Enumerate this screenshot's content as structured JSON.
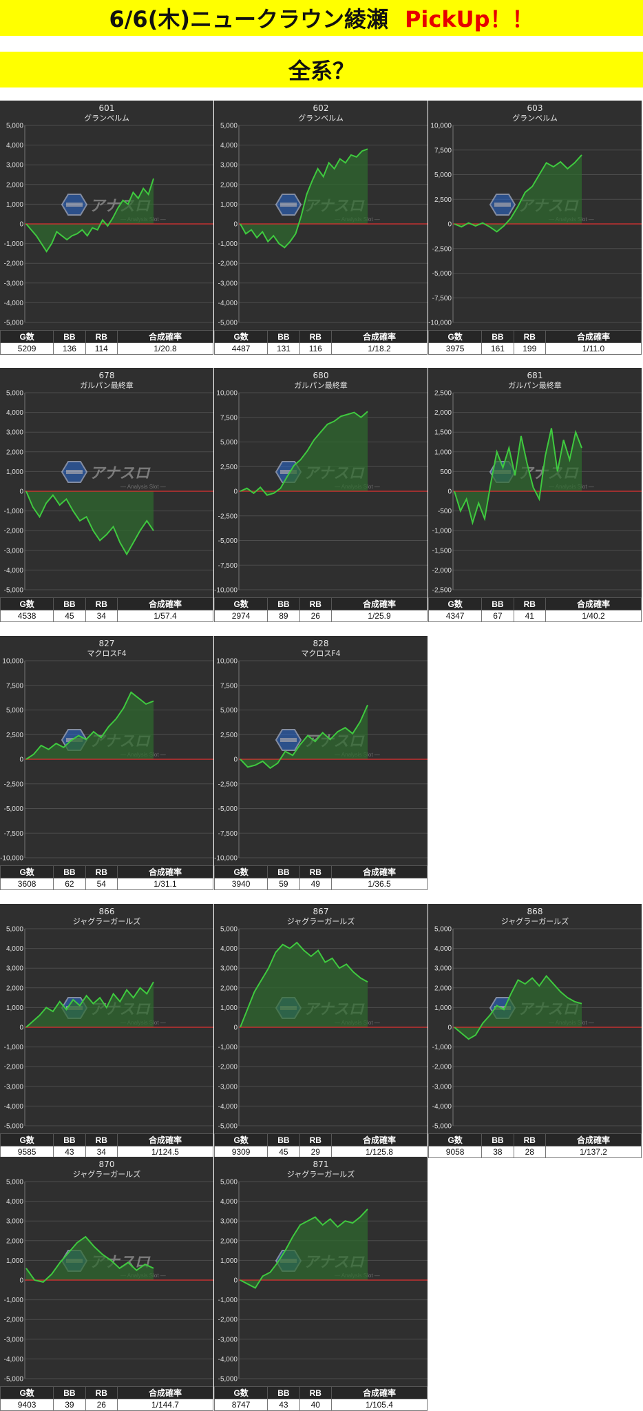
{
  "header": {
    "title": "6/6(木)ニュークラウン綾瀬",
    "pickup": "PickUp！！",
    "subtitle": "全系？"
  },
  "watermark": {
    "main": "アナスロ",
    "sub": "Analysis Slot"
  },
  "table_headers": {
    "games": "G数",
    "bb": "BB",
    "rb": "RB",
    "rate": "合成確率"
  },
  "colors": {
    "banner": "#ffff00",
    "plot_bg": "#2f2f2f",
    "line": "#3fc93f",
    "area": "#2e6b2e",
    "zero_line": "#e03030",
    "pickup": "#e60000"
  },
  "chart_data": [
    {
      "type": "area",
      "title": "601",
      "subtitle": "グランベルム",
      "ylim": [
        -5000,
        5000
      ],
      "yticks": [
        "5,000",
        "4,000",
        "3,000",
        "2,000",
        "1,000",
        "0",
        "-1,000",
        "-2,000",
        "-3,000",
        "-4,000",
        "-5,000"
      ],
      "values": [
        0,
        -300,
        -600,
        -1000,
        -1400,
        -1000,
        -400,
        -600,
        -800,
        -600,
        -500,
        -300,
        -600,
        -200,
        -300,
        200,
        -100,
        300,
        800,
        1200,
        1000,
        1600,
        1300,
        1800,
        1500,
        2300
      ],
      "stats": {
        "games": "5209",
        "bb": "136",
        "rb": "114",
        "rate": "1/20.8"
      }
    },
    {
      "type": "area",
      "title": "602",
      "subtitle": "グランベルム",
      "ylim": [
        -5000,
        5000
      ],
      "yticks": [
        "5,000",
        "4,000",
        "3,000",
        "2,000",
        "1,000",
        "0",
        "-1,000",
        "-2,000",
        "-3,000",
        "-4,000",
        "-5,000"
      ],
      "values": [
        0,
        -500,
        -300,
        -700,
        -400,
        -900,
        -600,
        -1000,
        -1200,
        -900,
        -500,
        400,
        1500,
        2200,
        2800,
        2400,
        3100,
        2800,
        3300,
        3100,
        3500,
        3400,
        3700,
        3800
      ],
      "stats": {
        "games": "4487",
        "bb": "131",
        "rb": "116",
        "rate": "1/18.2"
      }
    },
    {
      "type": "area",
      "title": "603",
      "subtitle": "グランベルム",
      "ylim": [
        -10000,
        10000
      ],
      "yticks": [
        "10,000",
        "7,500",
        "5,000",
        "2,500",
        "0",
        "-2,500",
        "-5,000",
        "-7,500",
        "-10,000"
      ],
      "values": [
        0,
        -300,
        100,
        -200,
        100,
        -300,
        -800,
        -200,
        600,
        1800,
        3200,
        3800,
        5000,
        6200,
        5800,
        6300,
        5600,
        6200,
        7000
      ],
      "stats": {
        "games": "3975",
        "bb": "161",
        "rb": "199",
        "rate": "1/11.0"
      }
    },
    {
      "type": "area",
      "title": "678",
      "subtitle": "ガルパン最終章",
      "ylim": [
        -5000,
        5000
      ],
      "yticks": [
        "5,000",
        "4,000",
        "3,000",
        "2,000",
        "1,000",
        "0",
        "-1,000",
        "-2,000",
        "-3,000",
        "-4,000",
        "-5,000"
      ],
      "values": [
        0,
        -800,
        -1300,
        -600,
        -200,
        -700,
        -400,
        -1000,
        -1500,
        -1300,
        -2000,
        -2500,
        -2200,
        -1800,
        -2600,
        -3200,
        -2600,
        -2000,
        -1500,
        -2000
      ],
      "stats": {
        "games": "4538",
        "bb": "45",
        "rb": "34",
        "rate": "1/57.4"
      }
    },
    {
      "type": "area",
      "title": "680",
      "subtitle": "ガルパン最終章",
      "ylim": [
        -10000,
        10000
      ],
      "yticks": [
        "10,000",
        "7,500",
        "5,000",
        "2,500",
        "0",
        "-2,500",
        "-5,000",
        "-7,500",
        "-10,000"
      ],
      "values": [
        0,
        300,
        -200,
        400,
        -400,
        -200,
        300,
        1500,
        2600,
        3200,
        4100,
        5200,
        6000,
        6800,
        7100,
        7600,
        7800,
        8000,
        7500,
        8100
      ],
      "stats": {
        "games": "2974",
        "bb": "89",
        "rb": "26",
        "rate": "1/25.9"
      }
    },
    {
      "type": "area",
      "title": "681",
      "subtitle": "ガルパン最終章",
      "ylim": [
        -2500,
        2500
      ],
      "yticks": [
        "2,500",
        "2,000",
        "1,500",
        "1,000",
        "500",
        "0",
        "-500",
        "-1,000",
        "-1,500",
        "-2,000",
        "-2,500"
      ],
      "values": [
        0,
        -500,
        -200,
        -800,
        -300,
        -700,
        200,
        1000,
        600,
        1100,
        400,
        1400,
        700,
        100,
        -200,
        900,
        1600,
        500,
        1300,
        800,
        1500,
        1100
      ],
      "stats": {
        "games": "4347",
        "bb": "67",
        "rb": "41",
        "rate": "1/40.2"
      }
    },
    {
      "type": "area",
      "title": "827",
      "subtitle": "マクロスF4",
      "ylim": [
        -10000,
        10000
      ],
      "yticks": [
        "10,000",
        "7,500",
        "5,000",
        "2,500",
        "0",
        "-2,500",
        "-5,000",
        "-7,500",
        "-10,000"
      ],
      "values": [
        0,
        500,
        1400,
        1000,
        1600,
        1200,
        1900,
        2400,
        2000,
        2800,
        2200,
        3300,
        4100,
        5200,
        6800,
        6200,
        5600,
        5900
      ],
      "stats": {
        "games": "3608",
        "bb": "62",
        "rb": "54",
        "rate": "1/31.1"
      }
    },
    {
      "type": "area",
      "title": "828",
      "subtitle": "マクロスF4",
      "ylim": [
        -10000,
        10000
      ],
      "yticks": [
        "10,000",
        "7,500",
        "5,000",
        "2,500",
        "0",
        "-2,500",
        "-5,000",
        "-7,500",
        "-10,000"
      ],
      "values": [
        0,
        -800,
        -600,
        -200,
        -900,
        -400,
        800,
        400,
        1500,
        2400,
        1800,
        2700,
        2000,
        2800,
        3200,
        2600,
        3800,
        5500
      ],
      "stats": {
        "games": "3940",
        "bb": "59",
        "rb": "49",
        "rate": "1/36.5"
      }
    },
    {
      "type": "area",
      "title": "866",
      "subtitle": "ジャグラーガールズ",
      "ylim": [
        -5000,
        5000
      ],
      "yticks": [
        "5,000",
        "4,000",
        "3,000",
        "2,000",
        "1,000",
        "0",
        "-1,000",
        "-2,000",
        "-3,000",
        "-4,000",
        "-5,000"
      ],
      "values": [
        0,
        300,
        600,
        1000,
        800,
        1300,
        900,
        1400,
        1100,
        1600,
        1200,
        1500,
        1000,
        1700,
        1300,
        1900,
        1500,
        2000,
        1700,
        2300
      ],
      "stats": {
        "games": "9585",
        "bb": "43",
        "rb": "34",
        "rate": "1/124.5"
      }
    },
    {
      "type": "area",
      "title": "867",
      "subtitle": "ジャグラーガールズ",
      "ylim": [
        -5000,
        5000
      ],
      "yticks": [
        "5,000",
        "4,000",
        "3,000",
        "2,000",
        "1,000",
        "0",
        "-1,000",
        "-2,000",
        "-3,000",
        "-4,000",
        "-5,000"
      ],
      "values": [
        0,
        900,
        1800,
        2400,
        3000,
        3800,
        4200,
        4000,
        4300,
        3900,
        3600,
        3900,
        3300,
        3500,
        3000,
        3200,
        2800,
        2500,
        2300
      ],
      "stats": {
        "games": "9309",
        "bb": "45",
        "rb": "29",
        "rate": "1/125.8"
      }
    },
    {
      "type": "area",
      "title": "868",
      "subtitle": "ジャグラーガールズ",
      "ylim": [
        -5000,
        5000
      ],
      "yticks": [
        "5,000",
        "4,000",
        "3,000",
        "2,000",
        "1,000",
        "0",
        "-1,000",
        "-2,000",
        "-3,000",
        "-4,000",
        "-5,000"
      ],
      "values": [
        0,
        -300,
        -600,
        -400,
        200,
        600,
        1100,
        900,
        1700,
        2400,
        2200,
        2500,
        2100,
        2600,
        2200,
        1800,
        1500,
        1300,
        1200
      ],
      "stats": {
        "games": "9058",
        "bb": "38",
        "rb": "28",
        "rate": "1/137.2"
      }
    },
    {
      "type": "area",
      "title": "870",
      "subtitle": "ジャグラーガールズ",
      "ylim": [
        -5000,
        5000
      ],
      "yticks": [
        "5,000",
        "4,000",
        "3,000",
        "2,000",
        "1,000",
        "0",
        "-1,000",
        "-2,000",
        "-3,000",
        "-4,000",
        "-5,000"
      ],
      "values": [
        600,
        0,
        -100,
        300,
        900,
        1400,
        1900,
        2200,
        1700,
        1300,
        1000,
        600,
        900,
        500,
        800,
        600
      ],
      "stats": {
        "games": "9403",
        "bb": "39",
        "rb": "26",
        "rate": "1/144.7"
      }
    },
    {
      "type": "area",
      "title": "871",
      "subtitle": "ジャグラーガールズ",
      "ylim": [
        -5000,
        5000
      ],
      "yticks": [
        "5,000",
        "4,000",
        "3,000",
        "2,000",
        "1,000",
        "0",
        "-1,000",
        "-2,000",
        "-3,000",
        "-4,000",
        "-5,000"
      ],
      "values": [
        0,
        -200,
        -400,
        200,
        400,
        900,
        1500,
        2200,
        2800,
        3000,
        3200,
        2800,
        3100,
        2700,
        3000,
        2900,
        3200,
        3600
      ],
      "stats": {
        "games": "8747",
        "bb": "43",
        "rb": "40",
        "rate": "1/105.4"
      }
    }
  ]
}
